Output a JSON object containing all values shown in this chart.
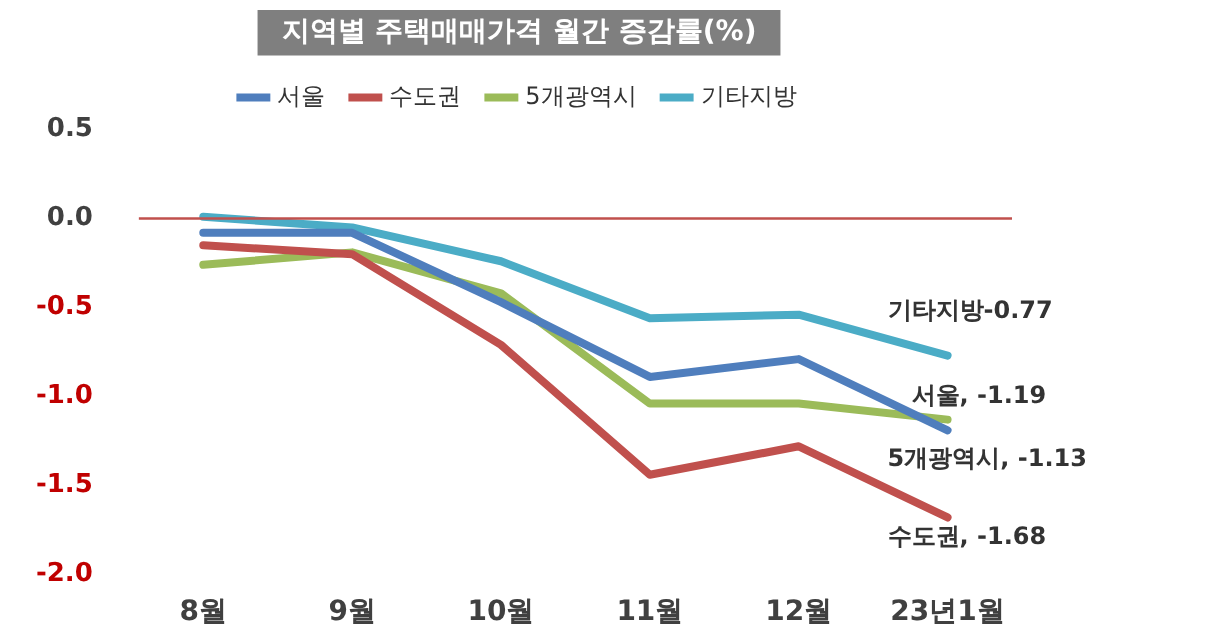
{
  "chart_data": {
    "type": "line",
    "title": "지역별 주택매매가격 월간 증감률(%)",
    "categories": [
      "8월",
      "9월",
      "10월",
      "11월",
      "12월",
      "23년1월"
    ],
    "series": [
      {
        "name": "서울",
        "color": "#4f7ebd",
        "values": [
          -0.08,
          -0.08,
          -0.47,
          -0.89,
          -0.79,
          -1.19
        ],
        "value_labels": [
          null,
          null,
          null,
          null,
          null,
          "서울, -1.19"
        ]
      },
      {
        "name": "수도권",
        "color": "#c0504d",
        "values": [
          -0.15,
          -0.2,
          -0.71,
          -1.44,
          -1.28,
          -1.68
        ],
        "value_labels": [
          null,
          null,
          null,
          null,
          null,
          "수도권, -1.68"
        ]
      },
      {
        "name": "5개광역시",
        "color": "#9bbb59",
        "values": [
          -0.26,
          -0.19,
          -0.42,
          -1.04,
          -1.04,
          -1.13
        ],
        "value_labels": [
          null,
          null,
          null,
          null,
          null,
          "5개광역시, -1.13"
        ]
      },
      {
        "name": "기타지방",
        "color": "#4bacc6",
        "values": [
          0.01,
          -0.05,
          -0.24,
          -0.56,
          -0.54,
          -0.77
        ],
        "value_labels": [
          null,
          null,
          null,
          null,
          null,
          "기타지방-0.77"
        ]
      }
    ],
    "ylim": [
      -2.0,
      0.5
    ],
    "yticks": [
      {
        "value": 0.5,
        "label": "0.5"
      },
      {
        "value": 0,
        "label": "0.0"
      },
      {
        "value": -0.5,
        "label": "-0.5"
      },
      {
        "value": -1,
        "label": "-1.0"
      },
      {
        "value": -1.5,
        "label": "-1.5"
      },
      {
        "value": -2,
        "label": "-2.0"
      }
    ],
    "ref_lines": [
      {
        "axis": "y",
        "value": 0,
        "color": "#c0504d"
      }
    ],
    "grid": false,
    "legend": "top",
    "marker": "none",
    "line_style": "solid"
  }
}
